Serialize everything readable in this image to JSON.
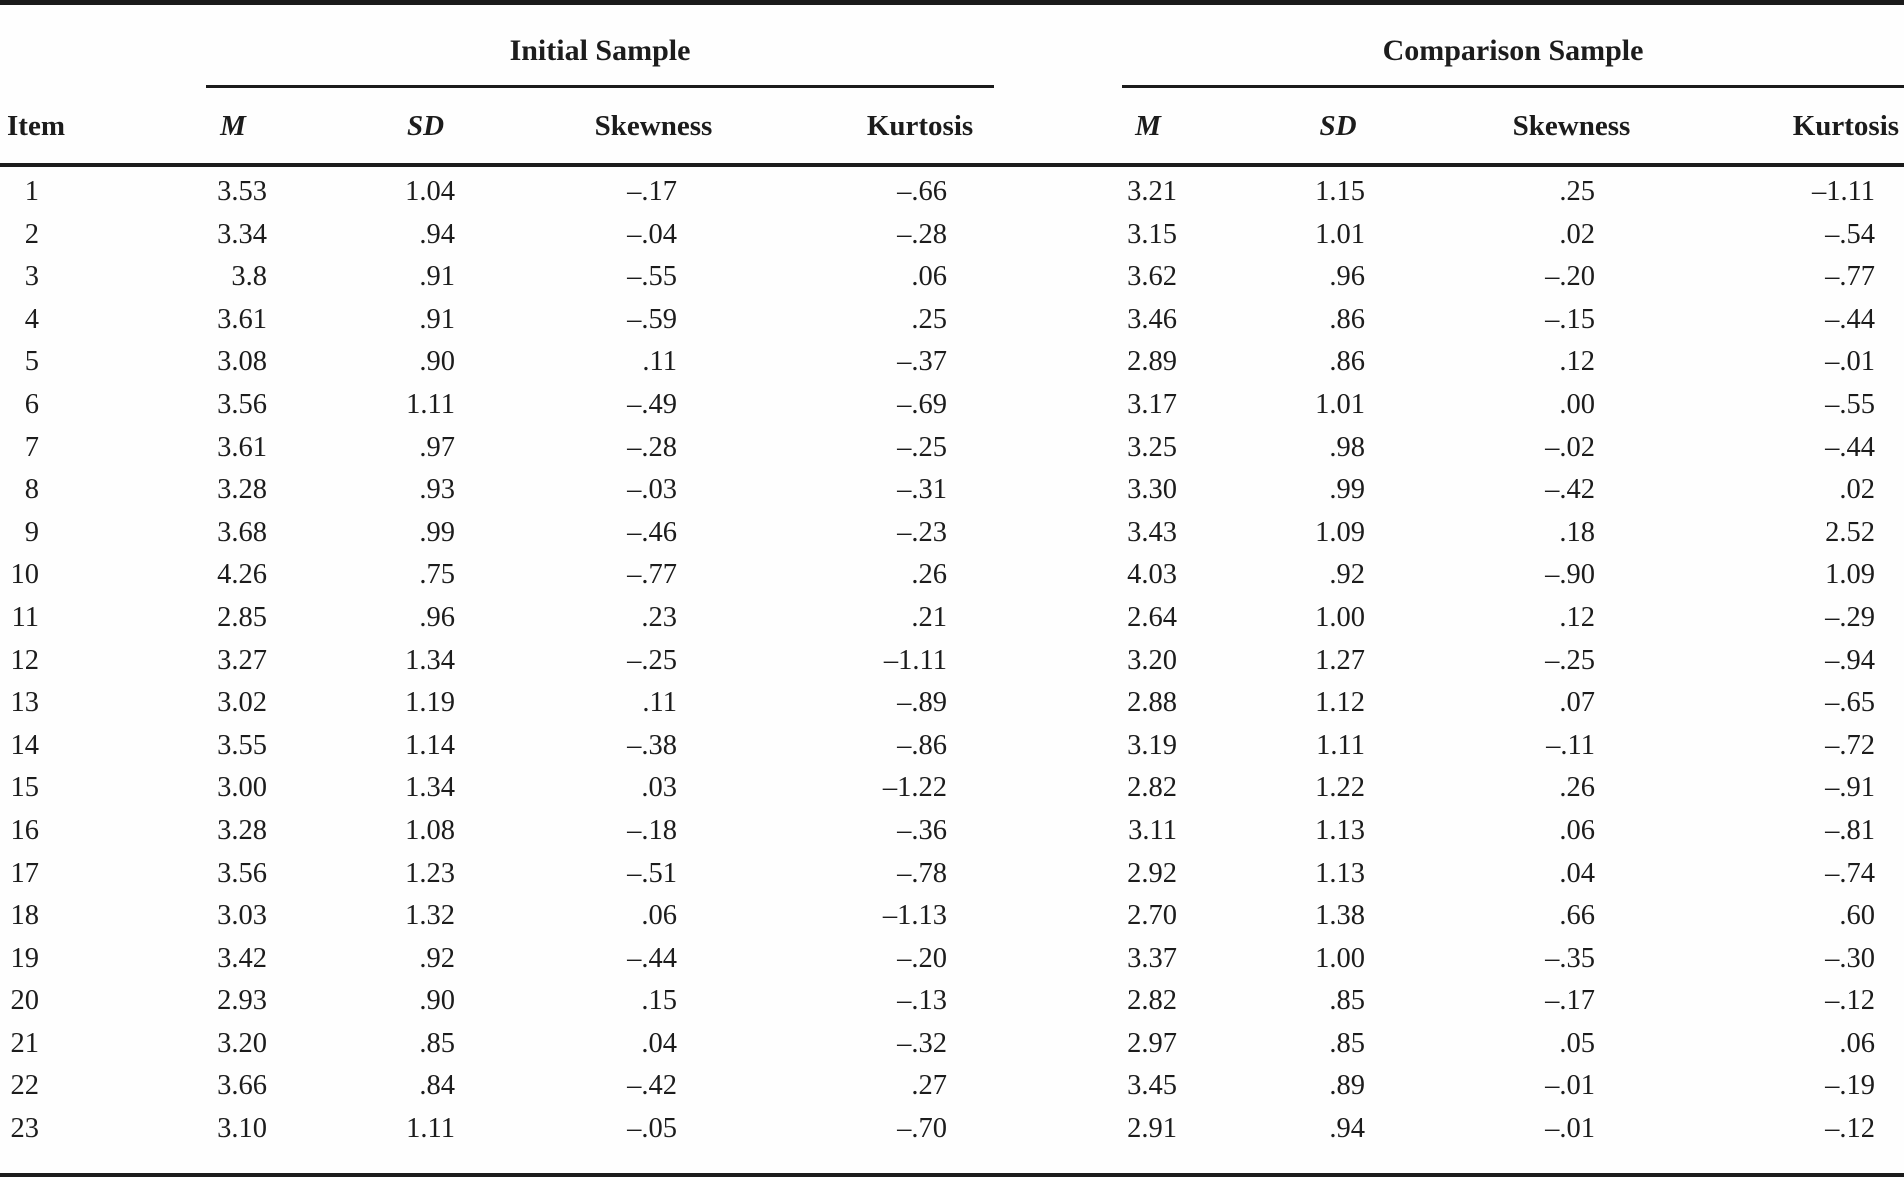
{
  "table": {
    "spanners": {
      "initial": "Initial Sample",
      "comparison": "Comparison Sample"
    },
    "columns": [
      "Item",
      "M",
      "SD",
      "Skewness",
      "Kurtosis",
      "M",
      "SD",
      "Skewness",
      "Kurtosis"
    ],
    "rows": [
      [
        "1",
        "3.53",
        "1.04",
        "–.17",
        "–.66",
        "3.21",
        "1.15",
        ".25",
        "–1.11"
      ],
      [
        "2",
        "3.34",
        ".94",
        "–.04",
        "–.28",
        "3.15",
        "1.01",
        ".02",
        "–.54"
      ],
      [
        "3",
        "3.8",
        ".91",
        "–.55",
        ".06",
        "3.62",
        ".96",
        "–.20",
        "–.77"
      ],
      [
        "4",
        "3.61",
        ".91",
        "–.59",
        ".25",
        "3.46",
        ".86",
        "–.15",
        "–.44"
      ],
      [
        "5",
        "3.08",
        ".90",
        ".11",
        "–.37",
        "2.89",
        ".86",
        ".12",
        "–.01"
      ],
      [
        "6",
        "3.56",
        "1.11",
        "–.49",
        "–.69",
        "3.17",
        "1.01",
        ".00",
        "–.55"
      ],
      [
        "7",
        "3.61",
        ".97",
        "–.28",
        "–.25",
        "3.25",
        ".98",
        "–.02",
        "–.44"
      ],
      [
        "8",
        "3.28",
        ".93",
        "–.03",
        "–.31",
        "3.30",
        ".99",
        "–.42",
        ".02"
      ],
      [
        "9",
        "3.68",
        ".99",
        "–.46",
        "–.23",
        "3.43",
        "1.09",
        ".18",
        "2.52"
      ],
      [
        "10",
        "4.26",
        ".75",
        "–.77",
        ".26",
        "4.03",
        ".92",
        "–.90",
        "1.09"
      ],
      [
        "11",
        "2.85",
        ".96",
        ".23",
        ".21",
        "2.64",
        "1.00",
        ".12",
        "–.29"
      ],
      [
        "12",
        "3.27",
        "1.34",
        "–.25",
        "–1.11",
        "3.20",
        "1.27",
        "–.25",
        "–.94"
      ],
      [
        "13",
        "3.02",
        "1.19",
        ".11",
        "–.89",
        "2.88",
        "1.12",
        ".07",
        "–.65"
      ],
      [
        "14",
        "3.55",
        "1.14",
        "–.38",
        "–.86",
        "3.19",
        "1.11",
        "–.11",
        "–.72"
      ],
      [
        "15",
        "3.00",
        "1.34",
        ".03",
        "–1.22",
        "2.82",
        "1.22",
        ".26",
        "–.91"
      ],
      [
        "16",
        "3.28",
        "1.08",
        "–.18",
        "–.36",
        "3.11",
        "1.13",
        ".06",
        "–.81"
      ],
      [
        "17",
        "3.56",
        "1.23",
        "–.51",
        "–.78",
        "2.92",
        "1.13",
        ".04",
        "–.74"
      ],
      [
        "18",
        "3.03",
        "1.32",
        ".06",
        "–1.13",
        "2.70",
        "1.38",
        ".66",
        ".60"
      ],
      [
        "19",
        "3.42",
        ".92",
        "–.44",
        "–.20",
        "3.37",
        "1.00",
        "–.35",
        "–.30"
      ],
      [
        "20",
        "2.93",
        ".90",
        ".15",
        "–.13",
        "2.82",
        ".85",
        "–.17",
        "–.12"
      ],
      [
        "21",
        "3.20",
        ".85",
        ".04",
        "–.32",
        "2.97",
        ".85",
        ".05",
        ".06"
      ],
      [
        "22",
        "3.66",
        ".84",
        "–.42",
        ".27",
        "3.45",
        ".89",
        "–.01",
        "–.19"
      ],
      [
        "23",
        "3.10",
        "1.11",
        "–.05",
        "–.70",
        "2.91",
        ".94",
        "–.01",
        "–.12"
      ]
    ]
  }
}
